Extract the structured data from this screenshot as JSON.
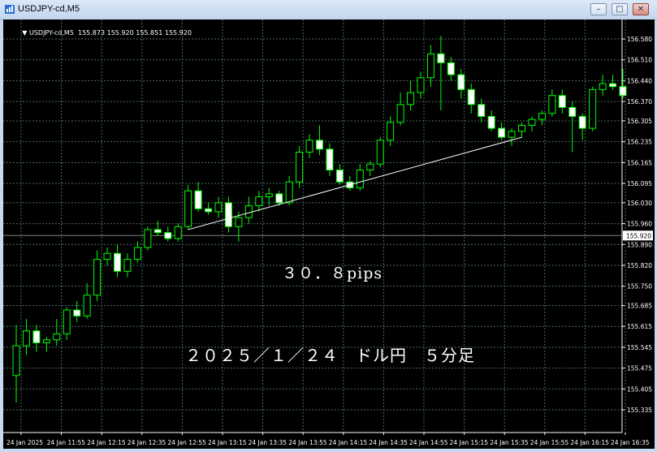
{
  "window": {
    "title": "USDJPY-cd,M5",
    "buttons": [
      {
        "name": "minimize",
        "glyph": "–"
      },
      {
        "name": "maximize",
        "glyph": "□"
      },
      {
        "name": "close",
        "glyph": "✕"
      }
    ]
  },
  "chart_header": {
    "symbol_info": "USDJPY-cd,M5  155.873 155.920 155.851 155.920"
  },
  "annotations": {
    "pips": "３０．８pips",
    "date_caption": "２０２５／１／２４　ドル円　５分足"
  },
  "colors": {
    "background": "#000000",
    "grid": "#4a6a66",
    "candle": "#ffffff",
    "wick": "#00ff00",
    "trendline": "#ffffff",
    "price_line": "#808080"
  },
  "chart_data": {
    "type": "candlestick",
    "symbol": "USDJPY-cd",
    "timeframe": "M5",
    "current_price_label": "155.920",
    "current_price": 155.92,
    "ylim": [
      155.3,
      156.61
    ],
    "y_ticks": [
      "156.580",
      "156.510",
      "156.440",
      "156.370",
      "156.305",
      "156.235",
      "156.165",
      "156.095",
      "156.030",
      "155.960",
      "155.890",
      "155.820",
      "155.750",
      "155.685",
      "155.615",
      "155.545",
      "155.475",
      "155.405",
      "155.335"
    ],
    "y_tick_values": [
      156.58,
      156.51,
      156.44,
      156.37,
      156.305,
      156.235,
      156.165,
      156.095,
      156.03,
      155.96,
      155.89,
      155.82,
      155.75,
      155.685,
      155.615,
      155.545,
      155.475,
      155.405,
      155.335
    ],
    "x_ticks": [
      "24 Jan 2025",
      "24 Jan 11:55",
      "24 Jan 12:15",
      "24 Jan 12:35",
      "24 Jan 12:55",
      "24 Jan 13:15",
      "24 Jan 13:35",
      "24 Jan 13:55",
      "24 Jan 14:15",
      "24 Jan 14:35",
      "24 Jan 14:55",
      "24 Jan 15:15",
      "24 Jan 15:35",
      "24 Jan 15:55",
      "24 Jan 16:15",
      "24 Jan 16:35"
    ],
    "candles": [
      {
        "o": 155.45,
        "h": 155.62,
        "l": 155.36,
        "c": 155.55
      },
      {
        "o": 155.55,
        "h": 155.64,
        "l": 155.52,
        "c": 155.6
      },
      {
        "o": 155.6,
        "h": 155.62,
        "l": 155.53,
        "c": 155.56
      },
      {
        "o": 155.56,
        "h": 155.58,
        "l": 155.53,
        "c": 155.57
      },
      {
        "o": 155.57,
        "h": 155.64,
        "l": 155.55,
        "c": 155.59
      },
      {
        "o": 155.59,
        "h": 155.68,
        "l": 155.57,
        "c": 155.67
      },
      {
        "o": 155.67,
        "h": 155.7,
        "l": 155.63,
        "c": 155.65
      },
      {
        "o": 155.65,
        "h": 155.76,
        "l": 155.64,
        "c": 155.72
      },
      {
        "o": 155.72,
        "h": 155.87,
        "l": 155.7,
        "c": 155.84
      },
      {
        "o": 155.84,
        "h": 155.88,
        "l": 155.82,
        "c": 155.86
      },
      {
        "o": 155.86,
        "h": 155.89,
        "l": 155.78,
        "c": 155.8
      },
      {
        "o": 155.8,
        "h": 155.86,
        "l": 155.78,
        "c": 155.84
      },
      {
        "o": 155.84,
        "h": 155.9,
        "l": 155.83,
        "c": 155.88
      },
      {
        "o": 155.88,
        "h": 155.95,
        "l": 155.87,
        "c": 155.94
      },
      {
        "o": 155.94,
        "h": 155.97,
        "l": 155.92,
        "c": 155.93
      },
      {
        "o": 155.93,
        "h": 155.95,
        "l": 155.9,
        "c": 155.91
      },
      {
        "o": 155.91,
        "h": 155.96,
        "l": 155.9,
        "c": 155.95
      },
      {
        "o": 155.95,
        "h": 156.09,
        "l": 155.94,
        "c": 156.07
      },
      {
        "o": 156.07,
        "h": 156.1,
        "l": 156.0,
        "c": 156.01
      },
      {
        "o": 156.01,
        "h": 156.03,
        "l": 155.99,
        "c": 156.0
      },
      {
        "o": 156.0,
        "h": 156.05,
        "l": 155.98,
        "c": 156.03
      },
      {
        "o": 156.03,
        "h": 156.05,
        "l": 155.93,
        "c": 155.95
      },
      {
        "o": 155.95,
        "h": 156.0,
        "l": 155.9,
        "c": 155.98
      },
      {
        "o": 155.98,
        "h": 156.05,
        "l": 155.96,
        "c": 156.02
      },
      {
        "o": 156.02,
        "h": 156.07,
        "l": 156.0,
        "c": 156.05
      },
      {
        "o": 156.05,
        "h": 156.08,
        "l": 156.02,
        "c": 156.06
      },
      {
        "o": 156.06,
        "h": 156.07,
        "l": 156.02,
        "c": 156.03
      },
      {
        "o": 156.03,
        "h": 156.12,
        "l": 156.02,
        "c": 156.1
      },
      {
        "o": 156.1,
        "h": 156.22,
        "l": 156.08,
        "c": 156.2
      },
      {
        "o": 156.2,
        "h": 156.26,
        "l": 156.18,
        "c": 156.24
      },
      {
        "o": 156.24,
        "h": 156.29,
        "l": 156.19,
        "c": 156.21
      },
      {
        "o": 156.21,
        "h": 156.23,
        "l": 156.12,
        "c": 156.14
      },
      {
        "o": 156.14,
        "h": 156.16,
        "l": 156.09,
        "c": 156.1
      },
      {
        "o": 156.1,
        "h": 156.12,
        "l": 156.07,
        "c": 156.08
      },
      {
        "o": 156.08,
        "h": 156.16,
        "l": 156.07,
        "c": 156.14
      },
      {
        "o": 156.14,
        "h": 156.17,
        "l": 156.12,
        "c": 156.16
      },
      {
        "o": 156.16,
        "h": 156.25,
        "l": 156.15,
        "c": 156.24
      },
      {
        "o": 156.24,
        "h": 156.32,
        "l": 156.22,
        "c": 156.3
      },
      {
        "o": 156.3,
        "h": 156.4,
        "l": 156.29,
        "c": 156.36
      },
      {
        "o": 156.36,
        "h": 156.44,
        "l": 156.34,
        "c": 156.4
      },
      {
        "o": 156.4,
        "h": 156.47,
        "l": 156.38,
        "c": 156.45
      },
      {
        "o": 156.45,
        "h": 156.56,
        "l": 156.42,
        "c": 156.53
      },
      {
        "o": 156.53,
        "h": 156.59,
        "l": 156.34,
        "c": 156.5
      },
      {
        "o": 156.5,
        "h": 156.52,
        "l": 156.44,
        "c": 156.46
      },
      {
        "o": 156.46,
        "h": 156.48,
        "l": 156.38,
        "c": 156.41
      },
      {
        "o": 156.41,
        "h": 156.43,
        "l": 156.33,
        "c": 156.36
      },
      {
        "o": 156.36,
        "h": 156.38,
        "l": 156.3,
        "c": 156.32
      },
      {
        "o": 156.32,
        "h": 156.34,
        "l": 156.27,
        "c": 156.28
      },
      {
        "o": 156.28,
        "h": 156.3,
        "l": 156.24,
        "c": 156.25
      },
      {
        "o": 156.25,
        "h": 156.28,
        "l": 156.22,
        "c": 156.27
      },
      {
        "o": 156.27,
        "h": 156.3,
        "l": 156.25,
        "c": 156.29
      },
      {
        "o": 156.29,
        "h": 156.32,
        "l": 156.27,
        "c": 156.31
      },
      {
        "o": 156.31,
        "h": 156.34,
        "l": 156.29,
        "c": 156.33
      },
      {
        "o": 156.33,
        "h": 156.41,
        "l": 156.32,
        "c": 156.39
      },
      {
        "o": 156.39,
        "h": 156.41,
        "l": 156.33,
        "c": 156.35
      },
      {
        "o": 156.35,
        "h": 156.37,
        "l": 156.2,
        "c": 156.32
      },
      {
        "o": 156.32,
        "h": 156.33,
        "l": 156.24,
        "c": 156.28
      },
      {
        "o": 156.28,
        "h": 156.42,
        "l": 156.27,
        "c": 156.41
      },
      {
        "o": 156.41,
        "h": 156.46,
        "l": 156.39,
        "c": 156.43
      },
      {
        "o": 156.43,
        "h": 156.46,
        "l": 156.41,
        "c": 156.42
      },
      {
        "o": 156.42,
        "h": 156.48,
        "l": 156.38,
        "c": 156.39
      }
    ],
    "trendline": {
      "from": [
        17,
        155.94
      ],
      "to": [
        50,
        156.25
      ]
    }
  }
}
